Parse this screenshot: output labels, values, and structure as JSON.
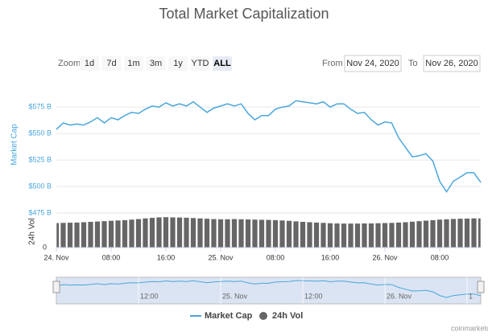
{
  "chart_data": {
    "type": "line",
    "title": "Total Market Capitalization",
    "range_selector": {
      "label": "Zoom",
      "buttons": [
        "1d",
        "7d",
        "1m",
        "3m",
        "1y",
        "YTD",
        "ALL"
      ],
      "selected": 6
    },
    "from_label": "From",
    "from": "Nov 24, 2020",
    "to_label": "To",
    "to": "Nov 26, 2020",
    "x": [
      0,
      1,
      2,
      3,
      4,
      5,
      6,
      7,
      8,
      9,
      10,
      11,
      12,
      13,
      14,
      15,
      16,
      17,
      18,
      19,
      20,
      21,
      22,
      23,
      24,
      25,
      26,
      27,
      28,
      29,
      30,
      31,
      32,
      33,
      34,
      35,
      36,
      37,
      38,
      39,
      40,
      41,
      42,
      43,
      44,
      45,
      46,
      47,
      48,
      49,
      50,
      51,
      52,
      53,
      54,
      55,
      56,
      57,
      58,
      59,
      60,
      61,
      62
    ],
    "xlim": [
      0,
      62
    ],
    "xticks": [
      {
        "value": 0,
        "label": "24. Nov"
      },
      {
        "value": 8,
        "label": "08:00"
      },
      {
        "value": 16,
        "label": "16:00"
      },
      {
        "value": 24,
        "label": "25. Nov"
      },
      {
        "value": 32,
        "label": "08:00"
      },
      {
        "value": 40,
        "label": "16:00"
      },
      {
        "value": 48,
        "label": "26. Nov"
      },
      {
        "value": 56,
        "label": "08:00"
      }
    ],
    "ylabel": "Market Cap",
    "ylim": [
      475,
      585
    ],
    "yticks": [
      {
        "value": 475,
        "label": "$475 B"
      },
      {
        "value": 500,
        "label": "$500 B"
      },
      {
        "value": 525,
        "label": "$525 B"
      },
      {
        "value": 550,
        "label": "$550 B"
      },
      {
        "value": 575,
        "label": "$575 B"
      }
    ],
    "y2label": "24h Vol",
    "y2lim": [
      0,
      200
    ],
    "y2ticks": [
      0
    ],
    "grid": true,
    "series": [
      {
        "name": "Market Cap",
        "color": "#4aa6dd",
        "values": [
          554,
          560,
          558,
          559,
          558,
          561,
          565,
          560,
          565,
          563,
          567,
          570,
          569,
          573,
          576,
          575,
          579,
          576,
          578,
          576,
          580,
          575,
          570,
          574,
          576,
          578,
          576,
          578,
          569,
          563,
          567,
          567,
          573,
          575,
          576,
          581,
          580,
          579,
          578,
          580,
          575,
          578,
          578,
          573,
          569,
          570,
          563,
          558,
          561,
          560,
          546,
          537,
          528,
          529,
          531,
          524,
          505,
          495,
          505,
          509,
          513,
          513,
          504
        ]
      },
      {
        "name": "24h Vol",
        "color": "#666666",
        "type": "column",
        "axis": "y2",
        "values": [
          143,
          144,
          145,
          146,
          148,
          150,
          152,
          154,
          156,
          158,
          160,
          163,
          166,
          170,
          173,
          176,
          177,
          176,
          175,
          174,
          172,
          170,
          168,
          166,
          165,
          165,
          166,
          165,
          164,
          163,
          162,
          161,
          160,
          158,
          156,
          153,
          150,
          148,
          146,
          144,
          142,
          141,
          140,
          140,
          140,
          141,
          141,
          142,
          143,
          144,
          146,
          148,
          151,
          154,
          157,
          160,
          163,
          165,
          167,
          168,
          169,
          170,
          170
        ]
      }
    ],
    "navigator": {
      "xticks": [
        {
          "value": 12,
          "label": "12:00"
        },
        {
          "value": 24,
          "label": "25. Nov"
        },
        {
          "value": 36,
          "label": "12:00"
        },
        {
          "value": 48,
          "label": "26. Nov"
        },
        {
          "value": 60,
          "label": "1"
        }
      ]
    },
    "credit": "coinmarketcap.com"
  }
}
